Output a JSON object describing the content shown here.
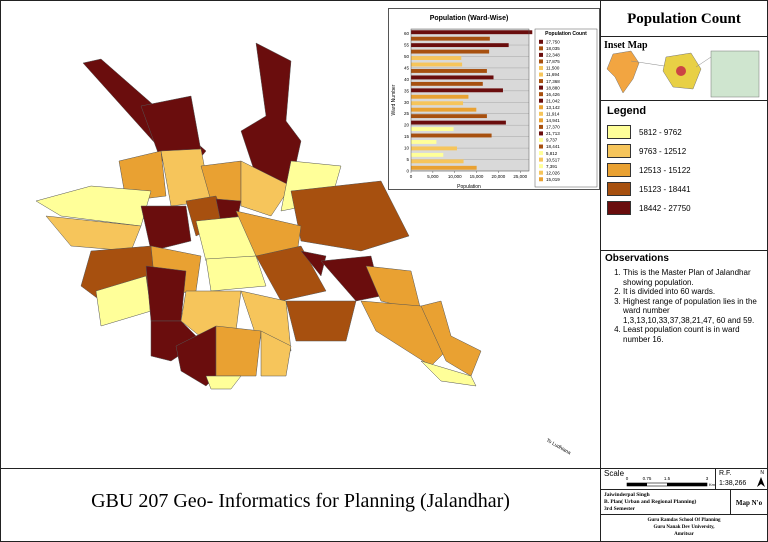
{
  "header": {
    "title": "Population Count"
  },
  "inset_map": {
    "label": "Inset Map"
  },
  "legend": {
    "title": "Legend",
    "classes": [
      {
        "label": "5812 - 9762",
        "color": "#ffff99"
      },
      {
        "label": "9763 - 12512",
        "color": "#f6c55b"
      },
      {
        "label": "12513 - 15122",
        "color": "#e9a132"
      },
      {
        "label": "15123 - 18441",
        "color": "#a7500f"
      },
      {
        "label": "18442 - 27750",
        "color": "#6a0d0d"
      }
    ]
  },
  "observations": {
    "title": "Observations",
    "items": [
      "This is the Master Plan of Jalandhar showing population.",
      "It is divided into 60 wards.",
      "Highest range of population lies in the ward number 1,3,13,10,33,37,38,21,47, 60 and 59.",
      "Least population count is in ward number 16."
    ]
  },
  "sheet_title": "GBU 207 Geo- Informatics for Planning (Jalandhar)",
  "scale": {
    "label": "Scale",
    "ticks": [
      "0",
      "0.75",
      "1.5",
      "3"
    ],
    "unit": "Km",
    "rf_label": "R.F.",
    "rf": "1:38,266",
    "north": "N"
  },
  "author": {
    "name": "Jaiwinderpal Singh",
    "program": "B. Plan( Urban and Regional Planning)",
    "semester": "3rd Semester"
  },
  "map_no": "Map N'o",
  "institution": [
    "Guru Ramdas School Of Planning",
    "Guru Nanak Dev University,",
    "Amritsar"
  ],
  "map_annotation": "To Ludhiana",
  "chart_data": {
    "type": "bar",
    "orientation": "horizontal",
    "title": "Population (Ward-Wise)",
    "x_label": "Population",
    "y_label": "Ward Number",
    "legend_title": "Population Count",
    "values": [
      27750,
      18035,
      22348,
      17875,
      11500,
      11694,
      17368,
      18880,
      16426,
      21042,
      13142,
      11914,
      14941,
      17370,
      21713,
      9737,
      18441,
      5812,
      10517,
      7391,
      12026,
      15019
    ],
    "value_labels": [
      "27,750",
      "18,035",
      "22,348",
      "17,875",
      "11,500",
      "11,694",
      "17,368",
      "18,880",
      "16,426",
      "21,042",
      "13,142",
      "11,914",
      "14,941",
      "17,370",
      "21,713",
      "9,737",
      "18,441",
      "5,812",
      "10,517",
      "7,391",
      "12,026",
      "15,019"
    ],
    "colors": [
      "#6a0d0d",
      "#a7500f",
      "#6a0d0d",
      "#a7500f",
      "#f6c55b",
      "#f6c55b",
      "#a7500f",
      "#6a0d0d",
      "#a7500f",
      "#6a0d0d",
      "#e9a132",
      "#f6c55b",
      "#e9a132",
      "#a7500f",
      "#6a0d0d",
      "#ffff99",
      "#a7500f",
      "#ffff99",
      "#f6c55b",
      "#ffff99",
      "#f6c55b",
      "#e9a132"
    ],
    "xlim": [
      0,
      27000
    ],
    "xticks": [
      0,
      {
        "value": 5000,
        "label": "5,000"
      },
      {
        "value": 10000,
        "label": "10,000"
      },
      {
        "value": 15000,
        "label": "15,000"
      },
      {
        "value": 20000,
        "label": "20,000"
      },
      {
        "value": 25000,
        "label": "25,000"
      }
    ],
    "ylim": [
      0,
      62
    ],
    "yticks": [
      0,
      5,
      10,
      15,
      20,
      25,
      30,
      35,
      40,
      45,
      50,
      55,
      60
    ],
    "grid": true
  }
}
